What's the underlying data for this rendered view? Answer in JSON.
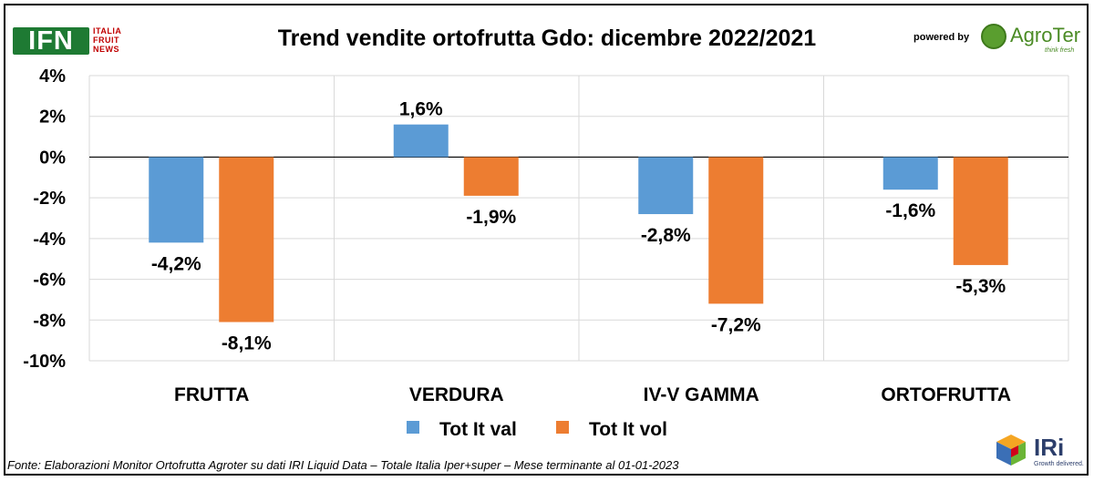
{
  "header": {
    "ifn_logo_text": "IFN",
    "ifn_tagline": [
      "ITALIA",
      "FRUIT",
      "NEWS"
    ],
    "powered_by": "powered by",
    "agroter_name": "AgroTer",
    "agroter_tagline": "think fresh",
    "iri_name": "IRi",
    "iri_tagline": "Growth delivered."
  },
  "footer": {
    "source": "Fonte: Elaborazioni Monitor Ortofrutta Agroter su dati IRI Liquid Data – Totale Italia Iper+super – Mese terminante al 01-01-2023"
  },
  "colors": {
    "series_val": "#5b9bd5",
    "series_vol": "#ed7d31",
    "grid": "#d9d9d9",
    "zero_line": "#000000"
  },
  "chart_data": {
    "type": "bar",
    "title": "Trend vendite ortofrutta Gdo: dicembre 2022/2021",
    "categories": [
      "FRUTTA",
      "VERDURA",
      "IV-V GAMMA",
      "ORTOFRUTTA"
    ],
    "series": [
      {
        "name": "Tot It val",
        "values": [
          -4.2,
          1.6,
          -2.8,
          -1.6
        ],
        "labels": [
          "-4,2%",
          "1,6%",
          "-2,8%",
          "-1,6%"
        ]
      },
      {
        "name": "Tot It  vol",
        "values": [
          -8.1,
          -1.9,
          -7.2,
          -5.3
        ],
        "labels": [
          "-8,1%",
          "-1,9%",
          "-7,2%",
          "-5,3%"
        ]
      }
    ],
    "ylim": [
      -10,
      4
    ],
    "yticks": [
      4,
      2,
      0,
      -2,
      -4,
      -6,
      -8,
      -10
    ],
    "ytick_labels": [
      "4%",
      "2%",
      "0%",
      "-2%",
      "-4%",
      "-6%",
      "-8%",
      "-10%"
    ],
    "grid": "horizontal and vertical category separators",
    "legend": "bottom-center"
  }
}
